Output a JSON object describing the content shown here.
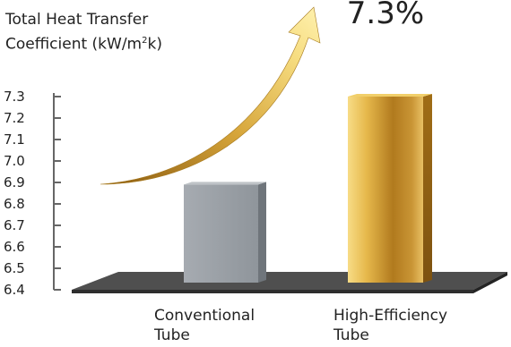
{
  "chart_data": {
    "type": "bar",
    "ylabel_line1": "Total Heat Transfer",
    "ylabel_line2_main": "Coefficient (kW/m",
    "ylabel_line2_sup": "2",
    "ylabel_line2_end": "k)",
    "ylim": [
      6.4,
      7.3
    ],
    "yticks": [
      "6.4",
      "6.5",
      "6.6",
      "6.7",
      "6.8",
      "6.9",
      "7.0",
      "7.1",
      "7.2",
      "7.3"
    ],
    "categories": [
      {
        "line1": "Conventional",
        "line2": "Tube"
      },
      {
        "line1": "High-Efficiency",
        "line2": "Tube"
      }
    ],
    "values": [
      6.89,
      7.3
    ],
    "value_label": "7.3%",
    "colors": {
      "conventional": "#9aa0a6",
      "high_efficiency": "#d8a93a",
      "platform": "#4a4a4a",
      "axis": "#666666"
    }
  }
}
